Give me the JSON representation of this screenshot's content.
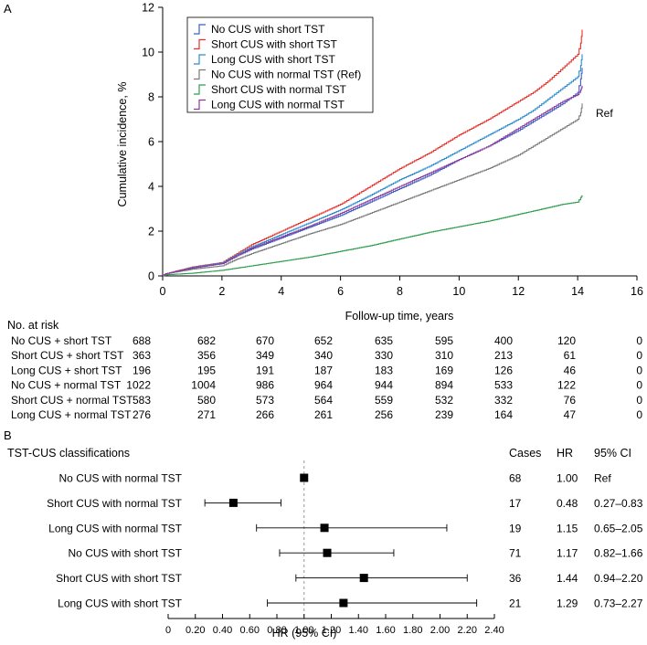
{
  "panel_a": {
    "label": "A",
    "ref_label": "Ref",
    "at_risk_title": "No. at risk",
    "at_risk": {
      "times": [
        0,
        2,
        4,
        6,
        8,
        10,
        12,
        14,
        16
      ],
      "rows": [
        {
          "label": "No CUS + short TST",
          "values": [
            "688",
            "682",
            "670",
            "652",
            "635",
            "595",
            "400",
            "120",
            "0"
          ]
        },
        {
          "label": "Short CUS + short TST",
          "values": [
            "363",
            "356",
            "349",
            "340",
            "330",
            "310",
            "213",
            "61",
            "0"
          ]
        },
        {
          "label": "Long CUS + short TST",
          "values": [
            "196",
            "195",
            "191",
            "187",
            "183",
            "169",
            "126",
            "46",
            "0"
          ]
        },
        {
          "label": "No CUS + normal TST",
          "values": [
            "1022",
            "1004",
            "986",
            "964",
            "944",
            "894",
            "533",
            "122",
            "0"
          ]
        },
        {
          "label": "Short CUS + normal TST",
          "values": [
            "583",
            "580",
            "573",
            "564",
            "559",
            "532",
            "332",
            "76",
            "0"
          ]
        },
        {
          "label": "Long CUS + normal TST",
          "values": [
            "276",
            "271",
            "266",
            "261",
            "256",
            "239",
            "164",
            "47",
            "0"
          ]
        }
      ]
    }
  },
  "panel_b": {
    "label": "B",
    "headers": {
      "title": "TST-CUS classifications",
      "cases": "Cases",
      "hr": "HR",
      "ci": "95% CI"
    }
  },
  "chart_data": [
    {
      "type": "line",
      "title": "",
      "xlabel": "Follow-up time, years",
      "ylabel": "Cumulative incidence, %",
      "xlim": [
        0,
        16
      ],
      "ylim": [
        0,
        12
      ],
      "xticks": [
        "0",
        "2",
        "4",
        "6",
        "8",
        "10",
        "12",
        "14",
        "16"
      ],
      "yticks": [
        "0",
        "2",
        "4",
        "6",
        "8",
        "10",
        "12"
      ],
      "series": [
        {
          "name": "No CUS with short TST",
          "color": "#3d5fc4",
          "x": [
            0,
            0.1,
            1,
            2,
            2.5,
            3,
            4,
            5,
            6,
            7,
            8,
            9,
            10,
            11,
            12,
            12.5,
            13,
            13.5,
            14,
            14.1,
            14.15
          ],
          "y": [
            0,
            0.1,
            0.35,
            0.55,
            0.9,
            1.2,
            1.7,
            2.2,
            2.7,
            3.3,
            3.9,
            4.5,
            5.2,
            5.8,
            6.5,
            6.9,
            7.3,
            7.7,
            8.2,
            8.8,
            9.3
          ]
        },
        {
          "name": "Short CUS with short TST",
          "color": "#e8302a",
          "x": [
            0,
            0.1,
            1,
            2,
            2.5,
            3,
            4,
            5,
            6,
            7,
            8,
            9,
            10,
            11,
            12,
            12.5,
            13,
            13.5,
            14,
            14.1,
            14.15
          ],
          "y": [
            0,
            0.1,
            0.4,
            0.6,
            1.0,
            1.4,
            2.0,
            2.6,
            3.2,
            4.0,
            4.8,
            5.5,
            6.3,
            7.0,
            7.8,
            8.2,
            8.7,
            9.3,
            9.9,
            10.4,
            11.0
          ]
        },
        {
          "name": "Long CUS with short TST",
          "color": "#2a8ccf",
          "x": [
            0,
            0.1,
            1,
            2,
            2.5,
            3,
            4,
            5,
            6,
            7,
            8,
            9,
            10,
            11,
            12,
            12.5,
            13,
            13.5,
            14,
            14.1,
            14.15
          ],
          "y": [
            0,
            0.1,
            0.38,
            0.58,
            0.95,
            1.3,
            1.85,
            2.4,
            2.95,
            3.6,
            4.3,
            4.9,
            5.6,
            6.3,
            7.0,
            7.4,
            7.9,
            8.4,
            8.9,
            9.4,
            9.9
          ]
        },
        {
          "name": "No CUS with normal TST (Ref)",
          "color": "#7a7a7a",
          "x": [
            0,
            0.1,
            1,
            2,
            2.5,
            3,
            4,
            5,
            6,
            7,
            8,
            9,
            10,
            11,
            12,
            12.5,
            13,
            13.5,
            14,
            14.1,
            14.15
          ],
          "y": [
            0,
            0.1,
            0.3,
            0.45,
            0.75,
            1.0,
            1.45,
            1.9,
            2.3,
            2.8,
            3.3,
            3.8,
            4.3,
            4.8,
            5.4,
            5.8,
            6.2,
            6.6,
            7.0,
            7.3,
            7.7
          ]
        },
        {
          "name": "Short CUS with normal TST",
          "color": "#2e9e4f",
          "x": [
            0,
            0.1,
            1,
            2,
            2.5,
            3,
            4,
            5,
            6,
            7,
            8,
            9,
            10,
            11,
            12,
            12.5,
            13,
            13.5,
            14,
            14.1,
            14.15
          ],
          "y": [
            0,
            0.05,
            0.12,
            0.25,
            0.35,
            0.45,
            0.65,
            0.85,
            1.1,
            1.35,
            1.65,
            1.95,
            2.2,
            2.45,
            2.75,
            2.9,
            3.05,
            3.2,
            3.3,
            3.5,
            3.6
          ]
        },
        {
          "name": "Long CUS with normal TST",
          "color": "#8b3a9c",
          "x": [
            0,
            0.1,
            1,
            2,
            2.5,
            3,
            4,
            5,
            6,
            7,
            8,
            9,
            10,
            11,
            12,
            12.5,
            13,
            13.5,
            14,
            14.1,
            14.15
          ],
          "y": [
            0,
            0.1,
            0.36,
            0.55,
            0.9,
            1.25,
            1.75,
            2.25,
            2.8,
            3.4,
            4.0,
            4.6,
            5.2,
            5.8,
            6.6,
            7.0,
            7.4,
            7.8,
            8.1,
            8.3,
            8.5
          ]
        }
      ]
    },
    {
      "type": "forest",
      "xlabel": "HR (95% CI)",
      "xlim": [
        0,
        2.4
      ],
      "xticks": [
        "0",
        "0.20",
        "0.40",
        "0.60",
        "0.80",
        "1.00",
        "1.20",
        "1.40",
        "1.60",
        "1.80",
        "2.00",
        "2.20",
        "2.40"
      ],
      "reference_line": 1.0,
      "rows": [
        {
          "label": "No CUS with normal TST",
          "cases": "68",
          "hr": 1.0,
          "hr_text": "1.00",
          "ci_low": null,
          "ci_high": null,
          "ci_text": "Ref"
        },
        {
          "label": "Short CUS with normal TST",
          "cases": "17",
          "hr": 0.48,
          "hr_text": "0.48",
          "ci_low": 0.27,
          "ci_high": 0.83,
          "ci_text": "0.27–0.83"
        },
        {
          "label": "Long CUS with normal TST",
          "cases": "19",
          "hr": 1.15,
          "hr_text": "1.15",
          "ci_low": 0.65,
          "ci_high": 2.05,
          "ci_text": "0.65–2.05"
        },
        {
          "label": "No CUS with short TST",
          "cases": "71",
          "hr": 1.17,
          "hr_text": "1.17",
          "ci_low": 0.82,
          "ci_high": 1.66,
          "ci_text": "0.82–1.66"
        },
        {
          "label": "Short CUS with short TST",
          "cases": "36",
          "hr": 1.44,
          "hr_text": "1.44",
          "ci_low": 0.94,
          "ci_high": 2.2,
          "ci_text": "0.94–2.20"
        },
        {
          "label": "Long CUS with short TST",
          "cases": "21",
          "hr": 1.29,
          "hr_text": "1.29",
          "ci_low": 0.73,
          "ci_high": 2.27,
          "ci_text": "0.73–2.27"
        }
      ]
    }
  ]
}
